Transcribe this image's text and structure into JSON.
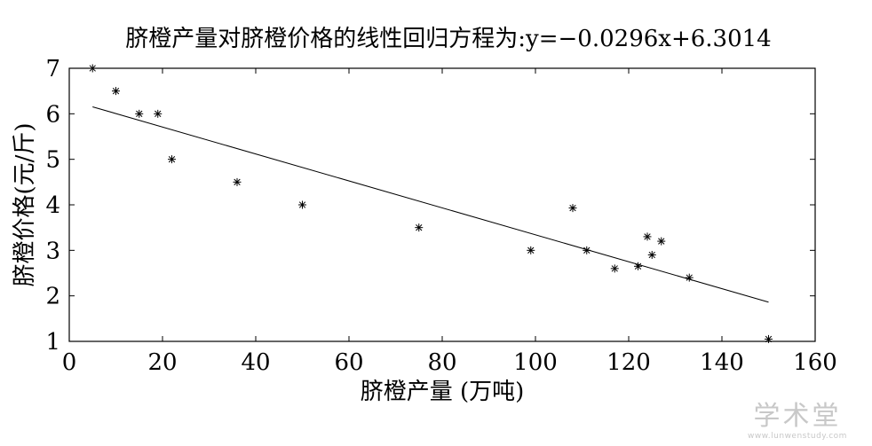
{
  "chart_data": {
    "type": "scatter",
    "title": "脐橙产量对脐橙价格的线性回归方程为:y=−0.0296x+6.3014",
    "xlabel": "脐橙产量 (万吨)",
    "ylabel": "脐橙价格(元/斤)",
    "xlim": [
      0,
      160
    ],
    "ylim": [
      1,
      7
    ],
    "xticks": [
      0,
      20,
      40,
      60,
      80,
      100,
      120,
      140,
      160
    ],
    "yticks": [
      1,
      2,
      3,
      4,
      5,
      6,
      7
    ],
    "grid": false,
    "legend": "none",
    "marker": "*",
    "points": {
      "x": [
        5,
        10,
        15,
        19,
        22,
        36,
        50,
        75,
        99,
        108,
        111,
        117,
        122,
        124,
        125,
        127,
        133,
        150
      ],
      "y": [
        7.0,
        6.5,
        6.0,
        6.0,
        5.0,
        4.5,
        4.0,
        3.5,
        3.0,
        3.93,
        3.0,
        2.6,
        2.65,
        3.3,
        2.9,
        3.2,
        2.4,
        1.05
      ]
    },
    "regression_line": {
      "slope": -0.0296,
      "intercept": 6.3014,
      "x_range": [
        5,
        150
      ]
    },
    "colors": {
      "axis": "#000000",
      "marker": "#000000",
      "line": "#000000"
    }
  },
  "watermark": {
    "main": "学术堂",
    "url": "www.lunwenstudy.com"
  }
}
